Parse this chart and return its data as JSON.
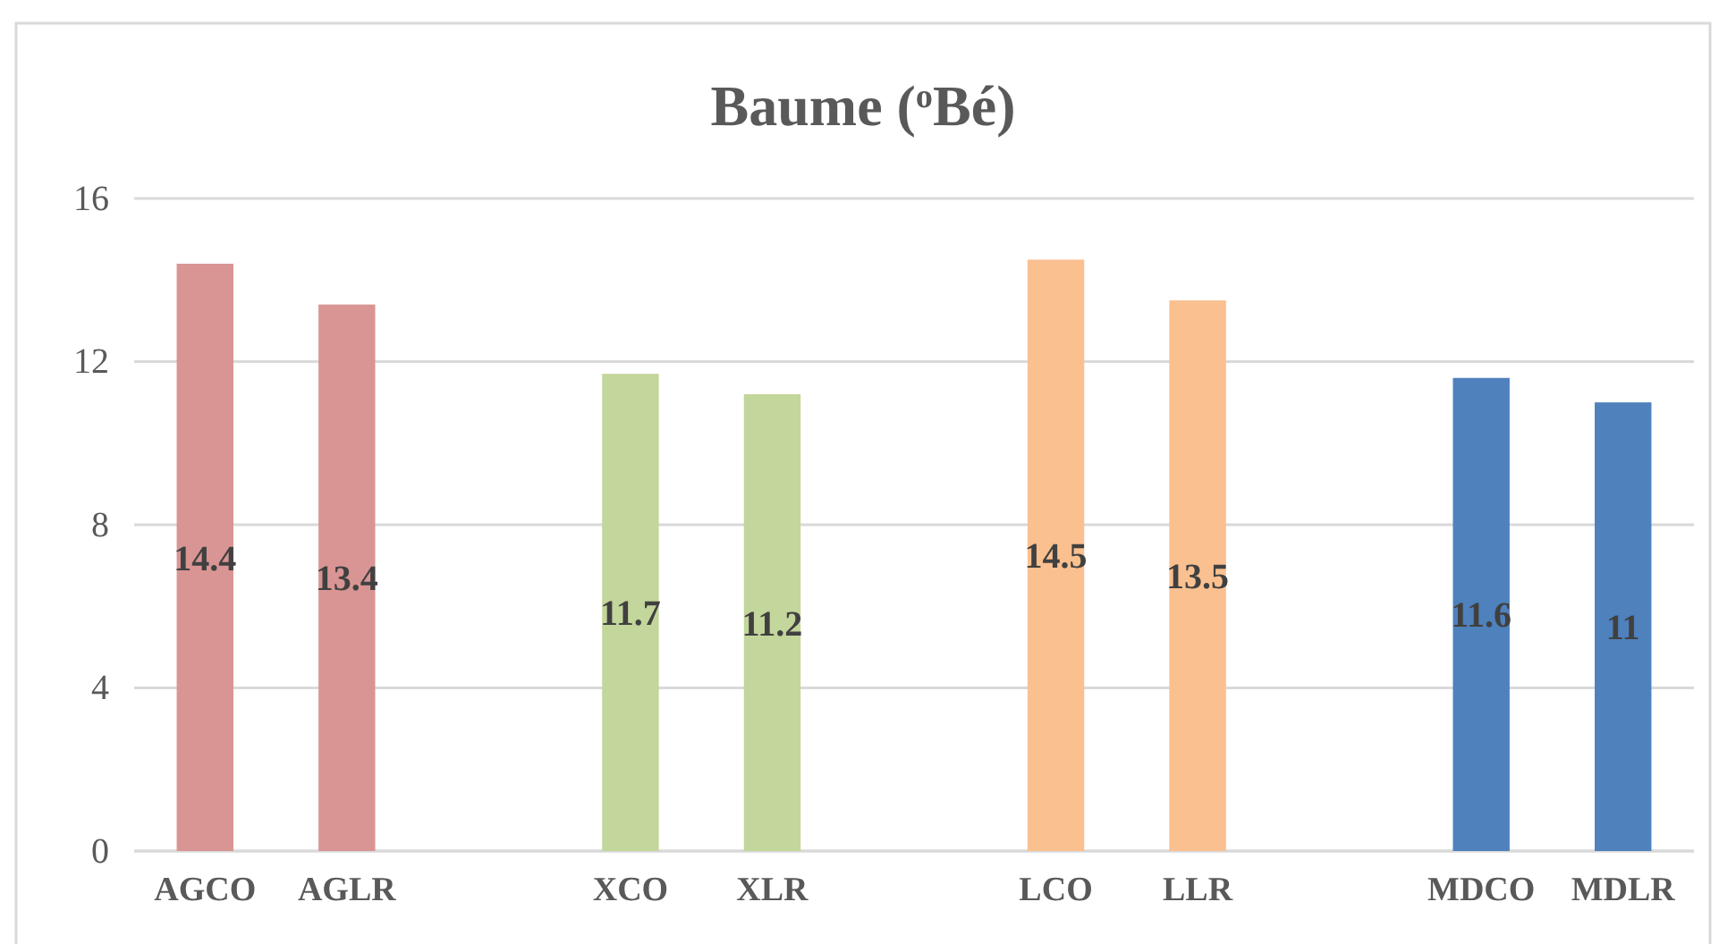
{
  "chart_data": {
    "type": "bar",
    "title": "Baume ($^{o}$Bé)",
    "categories": [
      "AGCO",
      "AGLR",
      null,
      "XCO",
      "XLR",
      null,
      "LCO",
      "LLR",
      null,
      "MDCO",
      "MDLR"
    ],
    "values": [
      14.4,
      13.4,
      null,
      11.7,
      11.2,
      null,
      14.5,
      13.5,
      null,
      11.6,
      11
    ],
    "colors": [
      "#d99594",
      "#d99594",
      null,
      "#c3d69b",
      "#c3d69b",
      null,
      "#fac090",
      "#fac090",
      null,
      "#4f81bd",
      "#4f81bd"
    ],
    "ylim": [
      0,
      16
    ],
    "yticks": [
      0,
      4,
      8,
      12,
      16
    ],
    "grid": "y",
    "data_labels": true
  }
}
